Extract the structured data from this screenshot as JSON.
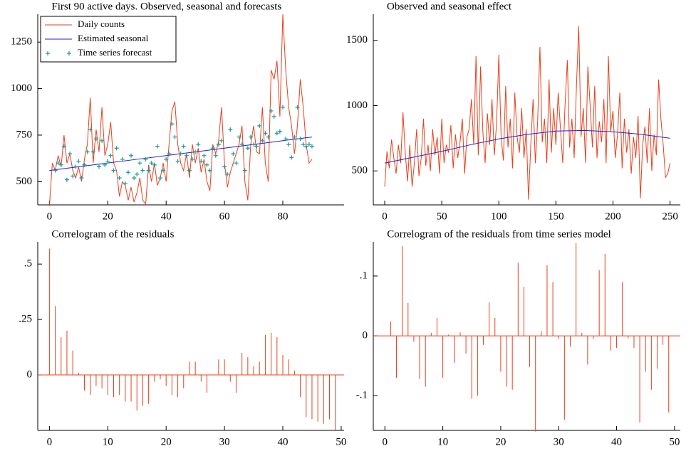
{
  "chart_data": [
    {
      "type": "line",
      "title": "First 90 active days. Observed, seasonal and forecasts",
      "xlim": [
        -4,
        101
      ],
      "ylim": [
        375,
        1400
      ],
      "xticks": [
        0,
        20,
        40,
        60,
        80
      ],
      "yticks": [
        500,
        750,
        1000,
        1250
      ],
      "legend": "top-left",
      "x": [
        0,
        1,
        2,
        3,
        4,
        5,
        6,
        7,
        8,
        9,
        10,
        11,
        12,
        13,
        14,
        15,
        16,
        17,
        18,
        19,
        20,
        21,
        22,
        23,
        24,
        25,
        26,
        27,
        28,
        29,
        30,
        31,
        32,
        33,
        34,
        35,
        36,
        37,
        38,
        39,
        40,
        41,
        42,
        43,
        44,
        45,
        46,
        47,
        48,
        49,
        50,
        51,
        52,
        53,
        54,
        55,
        56,
        57,
        58,
        59,
        60,
        61,
        62,
        63,
        64,
        65,
        66,
        67,
        68,
        69,
        70,
        71,
        72,
        73,
        74,
        75,
        76,
        77,
        78,
        79,
        80,
        81,
        82,
        83,
        84,
        85,
        86,
        87,
        88,
        89,
        90
      ],
      "series": [
        {
          "name": "Daily counts",
          "color": "#e8401c",
          "mode": "lines",
          "values": [
            370,
            600,
            560,
            640,
            580,
            750,
            600,
            650,
            560,
            520,
            580,
            500,
            620,
            700,
            950,
            600,
            780,
            660,
            900,
            640,
            700,
            820,
            600,
            560,
            420,
            500,
            480,
            400,
            470,
            390,
            440,
            520,
            400,
            380,
            590,
            500,
            600,
            480,
            520,
            600,
            500,
            700,
            880,
            930,
            700,
            600,
            560,
            650,
            520,
            700,
            600,
            680,
            550,
            620,
            500,
            450,
            700,
            650,
            720,
            900,
            600,
            470,
            550,
            600,
            650,
            700,
            800,
            500,
            400,
            700,
            800,
            660,
            650,
            900,
            600,
            500,
            1100,
            1050,
            1150,
            850,
            1400,
            1100,
            900,
            800,
            650,
            800,
            1050,
            900,
            700,
            600,
            620
          ]
        },
        {
          "name": "Estimated seasonal",
          "color": "#2020d0",
          "mode": "lines",
          "x": [
            0,
            10,
            20,
            30,
            40,
            50,
            60,
            70,
            80,
            90
          ],
          "values": [
            560,
            580,
            600,
            620,
            640,
            660,
            680,
            700,
            720,
            740
          ]
        },
        {
          "name": "Time series forecast",
          "color": "#1a9a9a",
          "mode": "markers",
          "values": [
            null,
            null,
            560,
            600,
            590,
            690,
            510,
            650,
            530,
            580,
            610,
            520,
            590,
            660,
            780,
            660,
            730,
            580,
            720,
            590,
            610,
            640,
            560,
            680,
            520,
            620,
            490,
            550,
            640,
            520,
            540,
            600,
            560,
            620,
            560,
            600,
            590,
            690,
            520,
            560,
            620,
            650,
            810,
            740,
            610,
            650,
            690,
            640,
            560,
            620,
            660,
            700,
            610,
            640,
            590,
            560,
            680,
            640,
            700,
            720,
            580,
            540,
            780,
            650,
            600,
            740,
            700,
            560,
            680,
            740,
            700,
            690,
            800,
            720,
            760,
            740,
            880,
            850,
            760,
            770,
            900,
            730,
            700,
            630,
            740,
            900,
            730,
            700,
            690,
            700,
            690
          ]
        }
      ]
    },
    {
      "type": "line",
      "title": "Observed and seasonal effect",
      "xlim": [
        -10,
        259
      ],
      "ylim": [
        240,
        1700
      ],
      "xticks": [
        0,
        50,
        100,
        150,
        200,
        250
      ],
      "yticks": [
        500,
        1000,
        1500
      ],
      "x": [
        0,
        2,
        4,
        6,
        8,
        10,
        12,
        14,
        16,
        18,
        20,
        22,
        24,
        26,
        28,
        30,
        32,
        34,
        36,
        38,
        40,
        42,
        44,
        46,
        48,
        50,
        52,
        54,
        56,
        58,
        60,
        62,
        64,
        66,
        68,
        70,
        72,
        74,
        76,
        78,
        80,
        82,
        84,
        86,
        88,
        90,
        92,
        94,
        96,
        98,
        100,
        102,
        104,
        106,
        108,
        110,
        112,
        114,
        116,
        118,
        120,
        122,
        124,
        126,
        128,
        130,
        132,
        134,
        136,
        138,
        140,
        142,
        144,
        146,
        148,
        150,
        152,
        154,
        156,
        158,
        160,
        162,
        164,
        166,
        168,
        170,
        172,
        174,
        176,
        178,
        180,
        182,
        184,
        186,
        188,
        190,
        192,
        194,
        196,
        198,
        200,
        202,
        204,
        206,
        208,
        210,
        212,
        214,
        216,
        218,
        220,
        222,
        224,
        226,
        228,
        230,
        232,
        234,
        236,
        238,
        240,
        242,
        244,
        246,
        248,
        250
      ],
      "series": [
        {
          "name": "Daily counts",
          "color": "#e8401c",
          "mode": "lines",
          "values": [
            380,
            650,
            520,
            740,
            600,
            480,
            700,
            560,
            950,
            640,
            420,
            700,
            380,
            560,
            820,
            460,
            600,
            900,
            540,
            700,
            500,
            820,
            620,
            760,
            480,
            900,
            560,
            700,
            640,
            850,
            520,
            780,
            600,
            720,
            900,
            480,
            760,
            820,
            1050,
            700,
            1380,
            620,
            1300,
            800,
            560,
            940,
            700,
            1050,
            620,
            860,
            1390,
            760,
            580,
            1150,
            680,
            900,
            520,
            1100,
            760,
            640,
            980,
            600,
            820,
            280,
            700,
            1050,
            560,
            880,
            1450,
            720,
            900,
            560,
            1200,
            640,
            980,
            700,
            1100,
            820,
            560,
            1000,
            1350,
            680,
            900,
            600,
            1150,
            1610,
            760,
            980,
            560,
            1300,
            1000,
            680,
            1150,
            600,
            880,
            720,
            1050,
            560,
            1380,
            800,
            960,
            600,
            780,
            1100,
            520,
            900,
            640,
            820,
            480,
            760,
            600,
            920,
            290,
            700,
            840,
            560,
            980,
            500,
            780,
            620,
            1200,
            900,
            700,
            450,
            480,
            560
          ]
        },
        {
          "name": "Estimated seasonal",
          "color": "#2020d0",
          "mode": "lines",
          "x": [
            0,
            25,
            50,
            75,
            100,
            125,
            150,
            175,
            200,
            225,
            250
          ],
          "values": [
            560,
            605,
            650,
            700,
            745,
            780,
            805,
            810,
            800,
            780,
            750
          ]
        }
      ]
    },
    {
      "type": "bar",
      "title": "Correlogram of the residuals",
      "color": "#e8401c",
      "xlim": [
        -2,
        50.5
      ],
      "ylim": [
        -0.25,
        0.6
      ],
      "xticks": [
        0,
        10,
        20,
        30,
        40,
        50
      ],
      "yticks": [
        0,
        {
          "value": 0.25,
          "label": ".25"
        },
        {
          "value": 0.5,
          "label": ".5"
        }
      ],
      "x": [
        0,
        1,
        2,
        3,
        4,
        5,
        6,
        7,
        8,
        9,
        10,
        11,
        12,
        13,
        14,
        15,
        16,
        17,
        18,
        19,
        20,
        21,
        22,
        23,
        24,
        25,
        26,
        27,
        28,
        29,
        30,
        31,
        32,
        33,
        34,
        35,
        36,
        37,
        38,
        39,
        40,
        41,
        42,
        43,
        44,
        45,
        46,
        47,
        48,
        49
      ],
      "values": [
        0.57,
        0.31,
        0.17,
        0.2,
        0.11,
        0.01,
        -0.07,
        -0.09,
        -0.05,
        -0.06,
        -0.09,
        -0.1,
        -0.09,
        -0.12,
        -0.12,
        -0.16,
        -0.14,
        -0.13,
        -0.03,
        -0.02,
        -0.05,
        -0.09,
        -0.1,
        -0.06,
        0.06,
        0.06,
        -0.03,
        -0.08,
        0.0,
        0.07,
        0.07,
        -0.03,
        -0.08,
        0.1,
        0.08,
        0.04,
        0.06,
        0.18,
        0.19,
        0.17,
        0.09,
        0.07,
        0.02,
        -0.1,
        -0.19,
        -0.2,
        -0.21,
        -0.22,
        -0.2,
        -0.25
      ]
    },
    {
      "type": "bar",
      "title": "Correlogram of the residuals from time series model",
      "color": "#e8401c",
      "xlim": [
        -2,
        51
      ],
      "ylim": [
        -0.158,
        0.157
      ],
      "xticks": [
        0,
        10,
        20,
        30,
        40,
        50
      ],
      "yticks": [
        {
          "value": -0.1,
          "label": "-.1"
        },
        0,
        {
          "value": 0.1,
          "label": ".1"
        }
      ],
      "x": [
        1,
        2,
        3,
        4,
        5,
        6,
        7,
        8,
        9,
        10,
        11,
        12,
        13,
        14,
        15,
        16,
        17,
        18,
        19,
        20,
        21,
        22,
        23,
        24,
        25,
        26,
        27,
        28,
        29,
        30,
        31,
        32,
        33,
        34,
        35,
        36,
        37,
        38,
        39,
        40,
        41,
        42,
        43,
        44,
        45,
        46,
        47,
        48,
        49
      ],
      "values": [
        0.024,
        -0.07,
        0.15,
        0.055,
        -0.01,
        -0.072,
        -0.085,
        0.005,
        0.03,
        -0.07,
        0.002,
        -0.045,
        0.006,
        -0.03,
        -0.105,
        -0.1,
        -0.015,
        0.056,
        0.03,
        -0.06,
        -0.085,
        -0.09,
        0.122,
        0.082,
        -0.052,
        -0.16,
        0.008,
        0.118,
        0.09,
        -0.005,
        -0.14,
        -0.018,
        0.155,
        0.005,
        -0.048,
        -0.005,
        0.11,
        0.137,
        -0.025,
        -0.02,
        0.09,
        -0.004,
        -0.02,
        -0.145,
        -0.06,
        -0.09,
        -0.055,
        -0.015,
        -0.128
      ]
    }
  ]
}
